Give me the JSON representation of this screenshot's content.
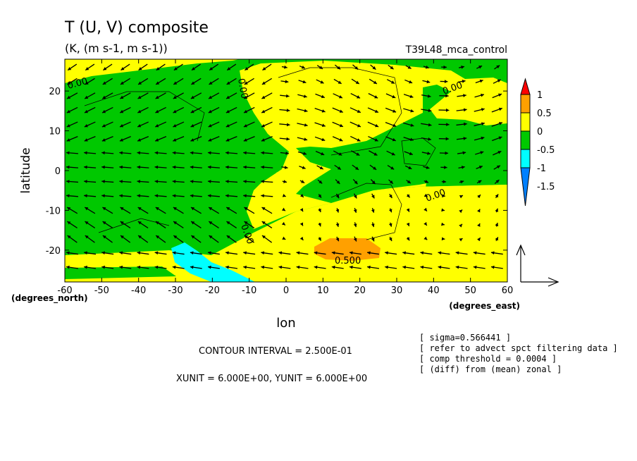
{
  "chart_data": {
    "type": "heatmap",
    "title": "T (U, V) composite",
    "subtitle": "(K, (m s-1, m s-1))",
    "experiment": "T39L48_mca_control",
    "xlabel": "lon",
    "ylabel": "latitude",
    "x_unit_label": "(degrees_east)",
    "y_unit_label": "(degrees_north)",
    "xlim": [
      -60,
      60
    ],
    "ylim": [
      -28,
      28
    ],
    "x_ticks": [
      -60,
      -50,
      -40,
      -30,
      -20,
      -10,
      0,
      10,
      20,
      30,
      40,
      50,
      60
    ],
    "y_ticks": [
      -20,
      -10,
      0,
      10,
      20
    ],
    "colorbar": {
      "levels": [
        -1.5,
        -1,
        -0.5,
        0,
        0.5,
        1
      ],
      "level_labels": [
        "-1.5",
        "-1",
        "-0.5",
        "0",
        "0.5",
        "1"
      ],
      "colors": [
        "#0080ff",
        "#00ffff",
        "#00c800",
        "#ffff00",
        "#ffa000",
        "#ff0000"
      ]
    },
    "contour_labels": [
      "0.00",
      "0.00",
      "0.00",
      "0.00",
      "0.00",
      "0.500"
    ],
    "vectors": "wind (U, V) arrows on regular grid",
    "contour_interval_text": "CONTOUR INTERVAL = 2.500E-01",
    "unit_vector_text": "XUNIT = 6.000E+00, YUNIT = 6.000E+00",
    "notes": [
      "[ sigma=0.566441 ]",
      "[ refer to advect spct filtering data ]",
      "[ comp threshold = 0.0004 ]",
      "[ (diff) from (mean) zonal ]"
    ]
  },
  "colors": {
    "green": "#00c800",
    "yellow": "#ffff00",
    "orange": "#ffa000",
    "cyan": "#00ffff"
  }
}
